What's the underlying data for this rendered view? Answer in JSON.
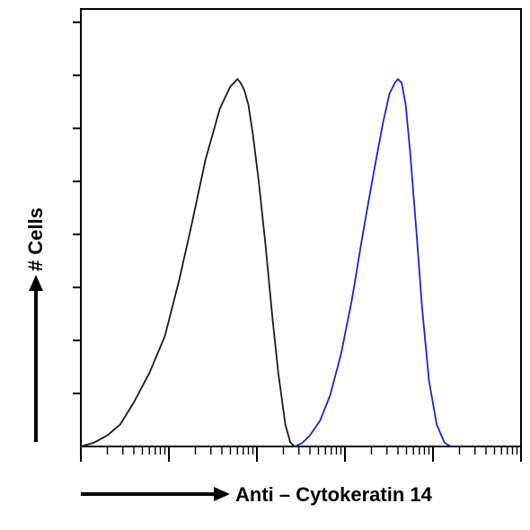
{
  "chart_data": {
    "type": "line",
    "title": "",
    "xlabel": "Anti – Cytokeratin 14",
    "ylabel": "# Cells",
    "x_scale": "log",
    "xlim": [
      1,
      100000
    ],
    "ylim": [
      0,
      1
    ],
    "grid": false,
    "legend": "none",
    "series": [
      {
        "color": "#1a1a1a",
        "x": [
          1.0,
          1.4,
          2.0,
          2.8,
          4.0,
          6.0,
          9.0,
          13,
          18,
          26,
          38,
          50,
          60,
          65,
          72,
          80,
          90,
          105,
          125,
          150,
          175,
          210,
          240,
          270
        ],
        "y": [
          0.0,
          0.01,
          0.03,
          0.06,
          0.12,
          0.2,
          0.3,
          0.45,
          0.6,
          0.78,
          0.92,
          0.98,
          1.0,
          0.99,
          0.97,
          0.93,
          0.85,
          0.72,
          0.55,
          0.35,
          0.2,
          0.06,
          0.01,
          0.0
        ]
      },
      {
        "color": "#1f1fd6",
        "x": [
          270,
          330,
          400,
          520,
          680,
          900,
          1200,
          1600,
          2100,
          2700,
          3200,
          3700,
          4000,
          4400,
          4900,
          5500,
          6500,
          7500,
          9000,
          11000,
          13500,
          16000
        ],
        "y": [
          0.0,
          0.01,
          0.03,
          0.07,
          0.14,
          0.25,
          0.4,
          0.58,
          0.74,
          0.88,
          0.96,
          0.99,
          1.0,
          0.99,
          0.93,
          0.8,
          0.58,
          0.38,
          0.18,
          0.06,
          0.01,
          0.0
        ]
      }
    ]
  }
}
